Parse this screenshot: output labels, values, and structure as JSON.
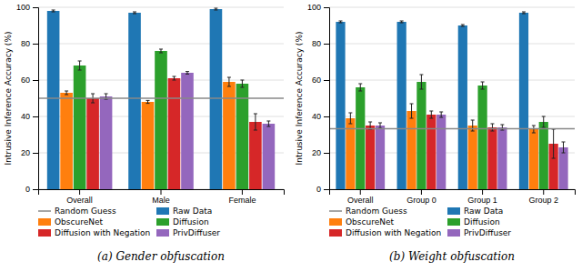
{
  "chart_data": [
    {
      "type": "bar",
      "title": "(a) Gender obfuscation",
      "y_label": "Intrusive Inference Accuracy (%)",
      "categories": [
        "Overall",
        "Male",
        "Female"
      ],
      "series": [
        {
          "name": "Raw Data",
          "values": [
            98,
            97,
            99
          ],
          "errors": [
            0.5,
            0.5,
            0.5
          ]
        },
        {
          "name": "ObscureNet",
          "values": [
            53,
            48,
            59
          ],
          "errors": [
            1.0,
            0.8,
            2.5
          ]
        },
        {
          "name": "Diffusion",
          "values": [
            68,
            76,
            58
          ],
          "errors": [
            2.5,
            1.0,
            2.0
          ]
        },
        {
          "name": "Diffusion with Negation",
          "values": [
            50,
            61,
            37
          ],
          "errors": [
            2.5,
            1.0,
            4.5
          ]
        },
        {
          "name": "PrivDiffuser",
          "values": [
            51,
            64,
            36
          ],
          "errors": [
            1.5,
            0.7,
            1.5
          ]
        }
      ],
      "random_guess": {
        "name": "Random Guess",
        "value": 50
      },
      "ylim": [
        0,
        100
      ],
      "yticks": [
        0,
        20,
        40,
        60,
        80,
        100
      ],
      "grid": true,
      "legend": "bottom"
    },
    {
      "type": "bar",
      "title": "(b) Weight obfuscation",
      "y_label": "Intrusive Inference Accuracy (%)",
      "categories": [
        "Overall",
        "Group 0",
        "Group 1",
        "Group 2"
      ],
      "series": [
        {
          "name": "Raw Data",
          "values": [
            92,
            92,
            90,
            97
          ],
          "errors": [
            0.5,
            0.5,
            0.5,
            0.5
          ]
        },
        {
          "name": "ObscureNet",
          "values": [
            39,
            43,
            35,
            33
          ],
          "errors": [
            3.0,
            4.0,
            3.0,
            2.0
          ]
        },
        {
          "name": "Diffusion",
          "values": [
            56,
            59,
            57,
            37
          ],
          "errors": [
            2.0,
            4.0,
            2.0,
            3.0
          ]
        },
        {
          "name": "Diffusion with Negation",
          "values": [
            35,
            41,
            34,
            25
          ],
          "errors": [
            2.0,
            2.0,
            2.0,
            8.0
          ]
        },
        {
          "name": "PrivDiffuser",
          "values": [
            35,
            41,
            34,
            23
          ],
          "errors": [
            1.5,
            1.5,
            1.5,
            3.0
          ]
        }
      ],
      "random_guess": {
        "name": "Random Guess",
        "value": 33.3
      },
      "ylim": [
        0,
        100
      ],
      "yticks": [
        0,
        20,
        40,
        60,
        80,
        100
      ],
      "grid": true,
      "legend": "bottom"
    }
  ]
}
